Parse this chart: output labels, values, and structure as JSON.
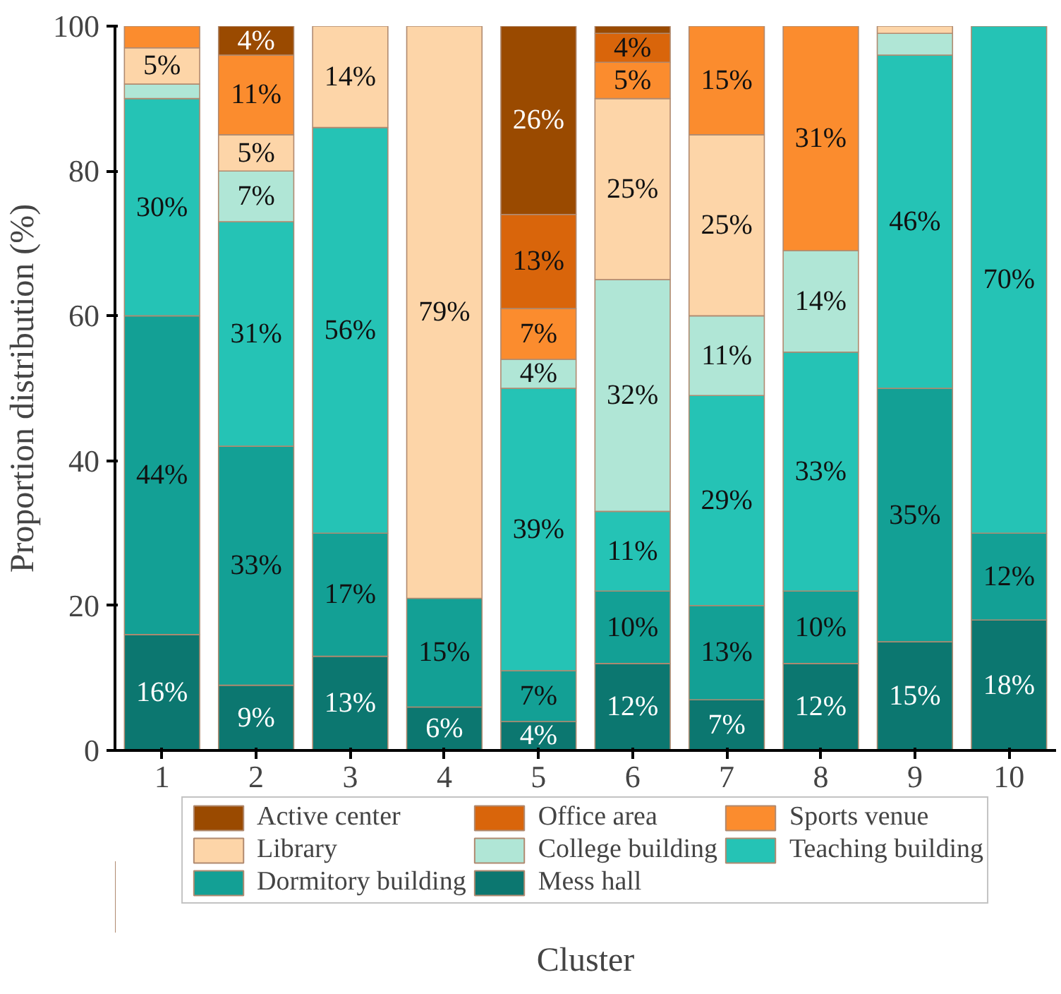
{
  "chart_data": {
    "type": "bar",
    "stacked": true,
    "xlabel": "Cluster",
    "ylabel": "Proportion distribution (%)",
    "categories": [
      "1",
      "2",
      "3",
      "4",
      "5",
      "6",
      "7",
      "8",
      "9",
      "10"
    ],
    "ylim": [
      0,
      100
    ],
    "yticks": [
      0,
      20,
      40,
      60,
      80,
      100
    ],
    "grid": false,
    "legend": "bottom",
    "series": [
      {
        "name": "Mess hall",
        "color": "#0c7770",
        "values": [
          16,
          9,
          13,
          6,
          4,
          12,
          7,
          12,
          15,
          18
        ],
        "value_labels": [
          "16%",
          "9%",
          "13%",
          "6%",
          "4%",
          "12%",
          "7%",
          "12%",
          "15%",
          "18%"
        ]
      },
      {
        "name": "Dormitory building",
        "color": "#13a095",
        "values": [
          44,
          33,
          17,
          15,
          7,
          10,
          13,
          10,
          35,
          12
        ],
        "value_labels": [
          "44%",
          "33%",
          "17%",
          "15%",
          "7%",
          "10%",
          "13%",
          "10%",
          "35%",
          "12%"
        ]
      },
      {
        "name": "Teaching building",
        "color": "#25c3b5",
        "values": [
          30,
          31,
          56,
          0,
          39,
          11,
          29,
          33,
          46,
          70
        ],
        "value_labels": [
          "30%",
          "31%",
          "56%",
          null,
          "39%",
          "11%",
          "29%",
          "33%",
          "46%",
          "70%"
        ]
      },
      {
        "name": "College building",
        "color": "#b0e6d6",
        "values": [
          2,
          7,
          0,
          0,
          4,
          32,
          11,
          14,
          3,
          0
        ],
        "value_labels": [
          null,
          "7%",
          null,
          null,
          "4%",
          "32%",
          "11%",
          "14%",
          null,
          null
        ]
      },
      {
        "name": "Library",
        "color": "#fdd5a8",
        "values": [
          5,
          5,
          14,
          79,
          0,
          25,
          25,
          0,
          1,
          0
        ],
        "value_labels": [
          "5%",
          "5%",
          "14%",
          "79%",
          null,
          "25%",
          "25%",
          null,
          null,
          null
        ]
      },
      {
        "name": "Sports venue",
        "color": "#fb8c2e",
        "values": [
          3,
          11,
          0,
          0,
          7,
          5,
          15,
          31,
          0,
          0
        ],
        "value_labels": [
          null,
          "11%",
          null,
          null,
          "7%",
          "5%",
          "15%",
          "31%",
          null,
          null
        ]
      },
      {
        "name": "Office area",
        "color": "#d9650b",
        "values": [
          0,
          0,
          0,
          0,
          13,
          4,
          0,
          0,
          0,
          0
        ],
        "value_labels": [
          null,
          null,
          null,
          null,
          "13%",
          "4%",
          null,
          null,
          null,
          null
        ]
      },
      {
        "name": "Active center",
        "color": "#9a4a00",
        "values": [
          0,
          4,
          0,
          0,
          26,
          1,
          0,
          0,
          0,
          0
        ],
        "value_labels": [
          null,
          "4%",
          null,
          null,
          "26%",
          null,
          null,
          null,
          null,
          null
        ]
      }
    ]
  }
}
